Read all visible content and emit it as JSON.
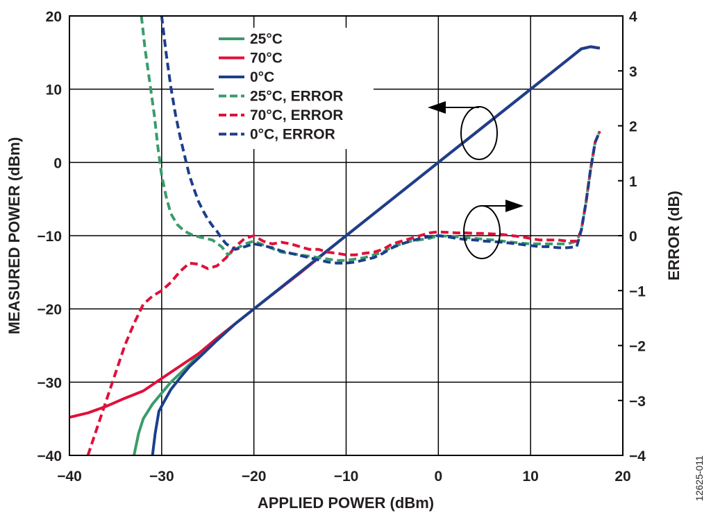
{
  "figure_id": "12625-011",
  "chart_data": {
    "type": "line",
    "xlabel": "APPLIED POWER (dBm)",
    "ylabel": "MEASURED POWER (dBm)",
    "y2label": "ERROR (dB)",
    "xlim": [
      -40,
      20
    ],
    "ylim": [
      -40,
      20
    ],
    "y2lim": [
      -4,
      4
    ],
    "xticks": [
      -40,
      -30,
      -20,
      -10,
      0,
      10,
      20
    ],
    "yticks": [
      -40,
      -30,
      -20,
      -10,
      0,
      10,
      20
    ],
    "y2ticks": [
      -4,
      -3,
      -2,
      -1,
      0,
      1,
      2,
      3,
      4
    ],
    "grid": true,
    "legend": "top-center",
    "series": [
      {
        "name": "25°C",
        "axis": "left",
        "color": "#3a9c6a",
        "dash": false,
        "x": [
          -33,
          -32.5,
          -32,
          -31,
          -30,
          -29,
          -28,
          -27,
          -26,
          -24,
          -22,
          -20,
          -15,
          -10,
          -5,
          0,
          5,
          10,
          14,
          15.5,
          16.5,
          17.5
        ],
        "y": [
          -40,
          -37,
          -35,
          -33,
          -31.5,
          -30,
          -28.8,
          -27.6,
          -26.3,
          -24.1,
          -22,
          -20,
          -15,
          -10,
          -5,
          0,
          5,
          10,
          14,
          15.5,
          15.8,
          15.6
        ]
      },
      {
        "name": "70°C",
        "axis": "left",
        "color": "#e0103a",
        "dash": false,
        "x": [
          -40,
          -38,
          -36,
          -34,
          -32,
          -30,
          -28,
          -26,
          -24,
          -22,
          -20,
          -15,
          -10,
          -5,
          0,
          5,
          10,
          14,
          15.5,
          16.5,
          17.5
        ],
        "y": [
          -34.8,
          -34.2,
          -33.3,
          -32.2,
          -31.2,
          -29.5,
          -27.8,
          -26.1,
          -24,
          -22,
          -20,
          -15.1,
          -10,
          -5,
          0,
          5,
          10,
          14,
          15.5,
          15.8,
          15.6
        ]
      },
      {
        "name": "0°C",
        "axis": "left",
        "color": "#1c3f8c",
        "dash": false,
        "x": [
          -31,
          -30.7,
          -30.3,
          -29.8,
          -29,
          -28,
          -27,
          -26,
          -24,
          -22,
          -20,
          -15,
          -10,
          -5,
          0,
          5,
          10,
          14,
          15.5,
          16.5,
          17.5
        ],
        "y": [
          -40,
          -37,
          -34,
          -32.8,
          -31,
          -29.4,
          -27.9,
          -26.7,
          -24.3,
          -22,
          -20,
          -15,
          -10,
          -5,
          0,
          5,
          10,
          14,
          15.5,
          15.8,
          15.6
        ]
      },
      {
        "name": "25°C, ERROR",
        "axis": "right",
        "color": "#3a9c6a",
        "dash": true,
        "x": [
          -32.2,
          -31.8,
          -31.3,
          -30.8,
          -30.4,
          -30,
          -29.5,
          -29,
          -28.3,
          -27.5,
          -26.5,
          -25.5,
          -24.5,
          -23.5,
          -22.8,
          -22,
          -21,
          -20,
          -18.5,
          -17,
          -15,
          -13,
          -11,
          -10,
          -8,
          -6,
          -5,
          -3,
          -1,
          0,
          2,
          4,
          6,
          8,
          10,
          12,
          14,
          15,
          15.5,
          16,
          16.5,
          17,
          17.5
        ],
        "y": [
          4,
          3.4,
          2.8,
          2.2,
          1.6,
          1.1,
          0.7,
          0.4,
          0.2,
          0.08,
          0,
          -0.04,
          -0.08,
          -0.2,
          -0.35,
          -0.25,
          -0.15,
          -0.1,
          -0.2,
          -0.3,
          -0.35,
          -0.4,
          -0.45,
          -0.45,
          -0.4,
          -0.3,
          -0.2,
          -0.1,
          -0.05,
          0,
          -0.02,
          -0.05,
          -0.08,
          -0.12,
          -0.15,
          -0.15,
          -0.15,
          -0.1,
          0.1,
          0.6,
          1.2,
          1.7,
          1.9
        ]
      },
      {
        "name": "70°C, ERROR",
        "axis": "right",
        "color": "#e0103a",
        "dash": true,
        "x": [
          -38,
          -37,
          -36,
          -35,
          -34,
          -33,
          -32,
          -31,
          -30,
          -29,
          -28,
          -27,
          -26,
          -25,
          -24,
          -23,
          -22,
          -21,
          -20,
          -19,
          -18,
          -17,
          -16,
          -15,
          -14,
          -13,
          -12,
          -11,
          -10,
          -9,
          -8,
          -7,
          -6,
          -5,
          -4,
          -3,
          -2,
          -1,
          0,
          1,
          2,
          3,
          4,
          5,
          6,
          7,
          8,
          9,
          10,
          11,
          12,
          13,
          14,
          15,
          15.5,
          16,
          16.5,
          17,
          17.5
        ],
        "y": [
          -4,
          -3.5,
          -3,
          -2.5,
          -2,
          -1.6,
          -1.25,
          -1.1,
          -1,
          -0.85,
          -0.65,
          -0.5,
          -0.52,
          -0.6,
          -0.55,
          -0.4,
          -0.2,
          -0.05,
          0,
          -0.1,
          -0.15,
          -0.12,
          -0.15,
          -0.2,
          -0.25,
          -0.25,
          -0.3,
          -0.32,
          -0.35,
          -0.35,
          -0.32,
          -0.3,
          -0.25,
          -0.15,
          -0.1,
          -0.05,
          0,
          0.05,
          0.07,
          0.06,
          0.05,
          0.05,
          0.04,
          0.04,
          0.03,
          0.02,
          0,
          -0.02,
          -0.05,
          -0.08,
          -0.08,
          -0.08,
          -0.1,
          -0.1,
          0.1,
          0.6,
          1.2,
          1.7,
          1.9
        ]
      },
      {
        "name": "0°C, ERROR",
        "axis": "right",
        "color": "#1c3f8c",
        "dash": true,
        "x": [
          -30,
          -29.5,
          -29,
          -28.5,
          -28,
          -27.5,
          -27,
          -26.5,
          -26,
          -25.5,
          -25,
          -24.5,
          -24,
          -23.5,
          -23,
          -22,
          -21,
          -20,
          -19,
          -18,
          -17,
          -16,
          -15,
          -14,
          -13,
          -12,
          -11,
          -10,
          -9,
          -8,
          -7,
          -6,
          -5,
          -4,
          -3,
          -2,
          -1,
          0,
          1,
          2,
          3,
          4,
          5,
          6,
          7,
          8,
          9,
          10,
          11,
          12,
          13,
          14,
          15,
          15.5,
          16,
          16.5,
          17,
          17.5
        ],
        "y": [
          4,
          3.3,
          2.7,
          2.2,
          1.8,
          1.45,
          1.1,
          0.85,
          0.62,
          0.45,
          0.3,
          0.18,
          0.08,
          -0.05,
          -0.15,
          -0.25,
          -0.2,
          -0.15,
          -0.18,
          -0.22,
          -0.28,
          -0.32,
          -0.36,
          -0.4,
          -0.44,
          -0.48,
          -0.5,
          -0.5,
          -0.48,
          -0.44,
          -0.4,
          -0.32,
          -0.22,
          -0.15,
          -0.1,
          -0.05,
          -0.02,
          0,
          -0.02,
          -0.05,
          -0.07,
          -0.08,
          -0.1,
          -0.11,
          -0.12,
          -0.14,
          -0.16,
          -0.18,
          -0.2,
          -0.2,
          -0.22,
          -0.22,
          -0.2,
          0.1,
          0.6,
          1.2,
          1.7,
          1.9
        ]
      }
    ]
  }
}
